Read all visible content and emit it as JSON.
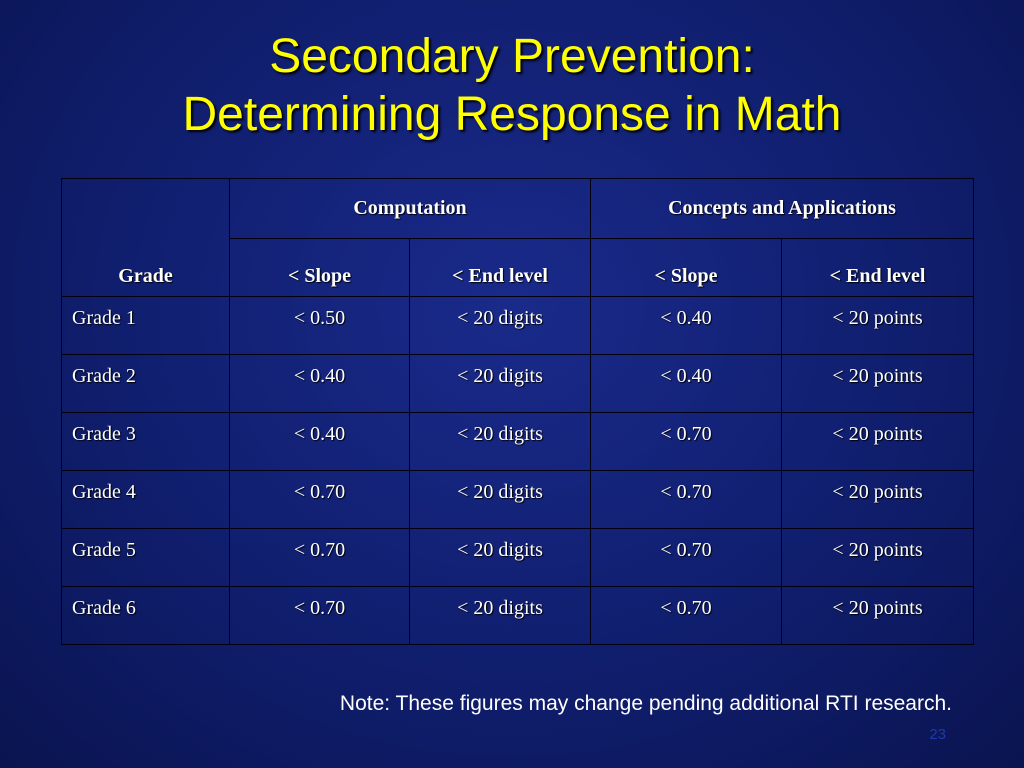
{
  "slide": {
    "title_line1": "Secondary Prevention:",
    "title_line2": "Determining Response in Math",
    "note": "Note: These figures may change pending additional RTI research.",
    "page_number": "23"
  },
  "table": {
    "grade_header": "Grade",
    "groups": [
      "Computation",
      "Concepts and Applications"
    ],
    "subheaders": [
      "< Slope",
      "< End level",
      "< Slope",
      "< End level"
    ],
    "rows": [
      {
        "grade": "Grade 1",
        "cells": [
          "< 0.50",
          "< 20 digits",
          "< 0.40",
          "< 20 points"
        ]
      },
      {
        "grade": "Grade 2",
        "cells": [
          "< 0.40",
          "< 20 digits",
          "< 0.40",
          "< 20 points"
        ]
      },
      {
        "grade": "Grade 3",
        "cells": [
          "< 0.40",
          "< 20 digits",
          "< 0.70",
          "< 20 points"
        ]
      },
      {
        "grade": "Grade 4",
        "cells": [
          "< 0.70",
          "< 20 digits",
          "< 0.70",
          "< 20 points"
        ]
      },
      {
        "grade": "Grade 5",
        "cells": [
          "< 0.70",
          "< 20 digits",
          "< 0.70",
          "< 20 points"
        ]
      },
      {
        "grade": "Grade 6",
        "cells": [
          "< 0.70",
          "< 20 digits",
          "< 0.70",
          "< 20 points"
        ]
      }
    ]
  },
  "colors": {
    "background": "#101e6e",
    "title": "#ffff00",
    "text": "#ffffff",
    "page_number": "#1e3aa8"
  }
}
